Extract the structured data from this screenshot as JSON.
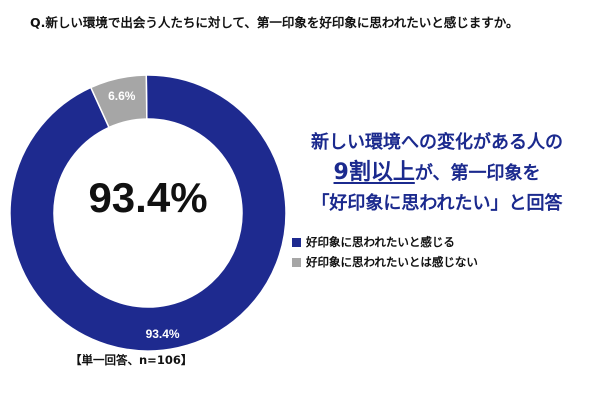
{
  "question": "Q.新しい環境で出会う人たちに対して、第一印象を好印象に思われたいと感じますか。",
  "note": "【単一回答、n=106】",
  "headline": {
    "line1": "新しい環境への変化がある人の",
    "line2_emph": "9割以上",
    "line2_rest": "が、第一印象を",
    "line3": "「好印象に思われたい」と回答"
  },
  "colors": {
    "primary": "#1e2a8f",
    "secondary": "#a6a6a6",
    "headline": "#1b2a8e"
  },
  "chart_data": {
    "type": "pie",
    "style": "donut",
    "center_label": "93.4%",
    "slices": [
      {
        "label": "好印象に思われたいと感じる",
        "value": 93.4,
        "display": "93.4%",
        "color": "#1e2a8f"
      },
      {
        "label": "好印象に思われたいとは感じない",
        "value": 6.6,
        "display": "6.6%",
        "color": "#a6a6a6"
      }
    ],
    "legend_position": "right"
  }
}
